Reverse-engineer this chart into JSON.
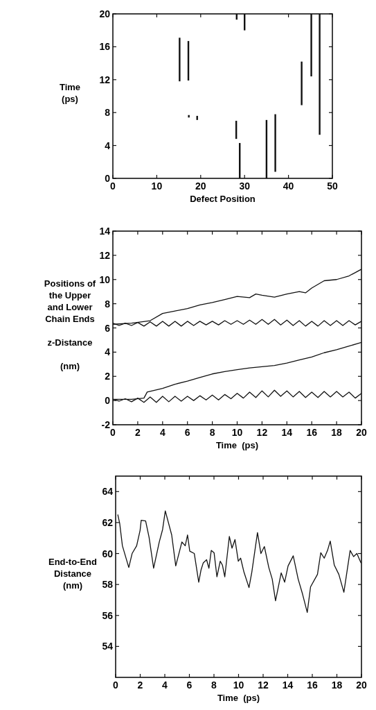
{
  "chart_data": [
    {
      "type": "bar",
      "xlabel": "Defect Position",
      "ylabel": "Time\n(ps)",
      "color": "#111111",
      "x": [
        15.2,
        17.2,
        17.3,
        19.2,
        28.1,
        28.2,
        28.9,
        30.0,
        35.0,
        37.0,
        43.0,
        45.2,
        47.1
      ],
      "base": [
        11.8,
        11.9,
        7.4,
        7.1,
        4.8,
        19.3,
        0,
        18.0,
        0,
        0.8,
        8.9,
        12.4,
        5.3
      ],
      "values": [
        5.3,
        4.8,
        0.3,
        0.5,
        2.2,
        0.7,
        4.3,
        2.0,
        7.1,
        7.0,
        5.3,
        7.6,
        14.7
      ],
      "xlim": [
        0,
        50
      ],
      "xticks": [
        0,
        10,
        20,
        30,
        40,
        50
      ],
      "ylim": [
        0,
        20
      ],
      "yticks": [
        0,
        4,
        8,
        12,
        16,
        20
      ]
    },
    {
      "type": "line",
      "xlabel": "Time  (ps)",
      "ylabel": "Positions of\nthe Upper\nand Lower\nChain Ends\n\nz-Distance\n\n(nm)",
      "series": [
        {
          "color": "#111111",
          "x": [
            0,
            0.5,
            1,
            1.5,
            2,
            2.5,
            3,
            3.5,
            4,
            4.5,
            5,
            5.5,
            6,
            6.5,
            7,
            7.5,
            8,
            8.5,
            9,
            9.5,
            10,
            10.5,
            11,
            11.5,
            12,
            12.5,
            13,
            13.5,
            14,
            14.5,
            15,
            15.5,
            16,
            16.5,
            17,
            17.5,
            18,
            18.5,
            19,
            19.5,
            20
          ],
          "values": [
            6.4,
            6.2,
            6.4,
            6.2,
            6.45,
            6.15,
            6.5,
            6.15,
            6.55,
            6.15,
            6.55,
            6.15,
            6.55,
            6.2,
            6.55,
            6.25,
            6.55,
            6.25,
            6.6,
            6.3,
            6.6,
            6.3,
            6.65,
            6.3,
            6.7,
            6.3,
            6.7,
            6.25,
            6.65,
            6.2,
            6.6,
            6.15,
            6.55,
            6.15,
            6.6,
            6.2,
            6.6,
            6.2,
            6.6,
            6.25,
            6.55
          ]
        },
        {
          "color": "#111111",
          "x": [
            0,
            0.5,
            1,
            1.5,
            2,
            2.5,
            3,
            3.5,
            4,
            4.5,
            5,
            5.5,
            6,
            6.5,
            7,
            7.5,
            8,
            8.5,
            9,
            9.5,
            10,
            10.5,
            11,
            11.5,
            12,
            12.5,
            13,
            13.5,
            14,
            14.5,
            15,
            15.5,
            16,
            16.5,
            17,
            17.5,
            18,
            18.5,
            19,
            19.5,
            20
          ],
          "values": [
            0.1,
            -0.05,
            0.15,
            -0.1,
            0.2,
            -0.15,
            0.3,
            -0.15,
            0.35,
            -0.1,
            0.35,
            -0.05,
            0.35,
            0.0,
            0.4,
            0.05,
            0.45,
            0.05,
            0.5,
            0.15,
            0.6,
            0.2,
            0.7,
            0.25,
            0.8,
            0.3,
            0.85,
            0.35,
            0.8,
            0.3,
            0.75,
            0.25,
            0.7,
            0.25,
            0.75,
            0.3,
            0.75,
            0.3,
            0.7,
            0.2,
            0.6
          ]
        },
        {
          "color": "#111111",
          "x": [
            0,
            1.5,
            3,
            4,
            5,
            6,
            7,
            8,
            9,
            10,
            11,
            11.5,
            12,
            13,
            14,
            15,
            15.5,
            16,
            17,
            18,
            19,
            20
          ],
          "values": [
            6.3,
            6.4,
            6.6,
            7.2,
            7.4,
            7.6,
            7.9,
            8.1,
            8.35,
            8.6,
            8.5,
            8.8,
            8.7,
            8.55,
            8.8,
            9.0,
            8.9,
            9.3,
            9.9,
            10.0,
            10.3,
            10.85
          ]
        },
        {
          "color": "#111111",
          "x": [
            0,
            1.5,
            2.5,
            2.76,
            4,
            5,
            6,
            7,
            8,
            9,
            10,
            11,
            12,
            13,
            14,
            15,
            16,
            17,
            18,
            19,
            20
          ],
          "values": [
            0.1,
            0.1,
            0.2,
            0.7,
            1.0,
            1.35,
            1.6,
            1.9,
            2.2,
            2.4,
            2.55,
            2.7,
            2.8,
            2.9,
            3.1,
            3.35,
            3.6,
            3.95,
            4.2,
            4.5,
            4.8
          ]
        }
      ],
      "xlim": [
        0,
        20
      ],
      "xticks": [
        0,
        2,
        4,
        6,
        8,
        10,
        12,
        14,
        16,
        18,
        20
      ],
      "ylim": [
        -2,
        14
      ],
      "yticks": [
        -2,
        0,
        2,
        4,
        6,
        8,
        10,
        12,
        14
      ]
    },
    {
      "type": "line",
      "xlabel": "Time  (ps)",
      "ylabel": "End-to-End\nDistance\n(nm)",
      "color": "#111111",
      "x": [
        0.18,
        0.33,
        0.55,
        1.07,
        1.34,
        1.71,
        1.99,
        2.08,
        2.44,
        2.72,
        3.09,
        3.55,
        3.82,
        4.04,
        4.56,
        4.89,
        5.2,
        5.39,
        5.66,
        5.85,
        6.03,
        6.4,
        6.76,
        6.95,
        7.13,
        7.4,
        7.59,
        7.78,
        8.01,
        8.24,
        8.51,
        8.69,
        8.88,
        9.25,
        9.47,
        9.71,
        9.98,
        10.17,
        10.44,
        10.85,
        11.08,
        11.54,
        11.82,
        12.1,
        12.46,
        12.74,
        13.01,
        13.47,
        13.75,
        14.03,
        14.45,
        14.85,
        15.2,
        15.59,
        15.86,
        16.42,
        16.69,
        16.97,
        17.24,
        17.46,
        17.79,
        18.16,
        18.57,
        19.08,
        19.36,
        19.63,
        19.96
      ],
      "values": [
        62.5,
        61.95,
        60.5,
        59.1,
        60.0,
        60.5,
        61.5,
        62.15,
        62.1,
        61.05,
        59.05,
        60.75,
        61.55,
        62.75,
        61.2,
        59.2,
        60.15,
        60.75,
        60.5,
        61.2,
        60.15,
        60.0,
        58.15,
        58.95,
        59.4,
        59.6,
        59.05,
        60.2,
        60.05,
        58.5,
        59.5,
        59.25,
        58.5,
        61.1,
        60.35,
        60.9,
        59.5,
        59.7,
        58.8,
        57.8,
        58.8,
        61.35,
        60.0,
        60.45,
        59.1,
        58.35,
        56.95,
        58.75,
        58.15,
        59.2,
        59.85,
        58.35,
        57.4,
        56.2,
        57.85,
        58.65,
        60.05,
        59.7,
        60.2,
        60.8,
        59.25,
        58.65,
        57.5,
        60.2,
        59.8,
        60.0,
        59.4
      ],
      "xlim": [
        0,
        20
      ],
      "xticks": [
        0,
        2,
        4,
        6,
        8,
        10,
        12,
        14,
        16,
        18,
        20
      ],
      "ylim": [
        52,
        65
      ],
      "yticks": [
        54,
        56,
        58,
        60,
        62,
        64
      ]
    }
  ]
}
